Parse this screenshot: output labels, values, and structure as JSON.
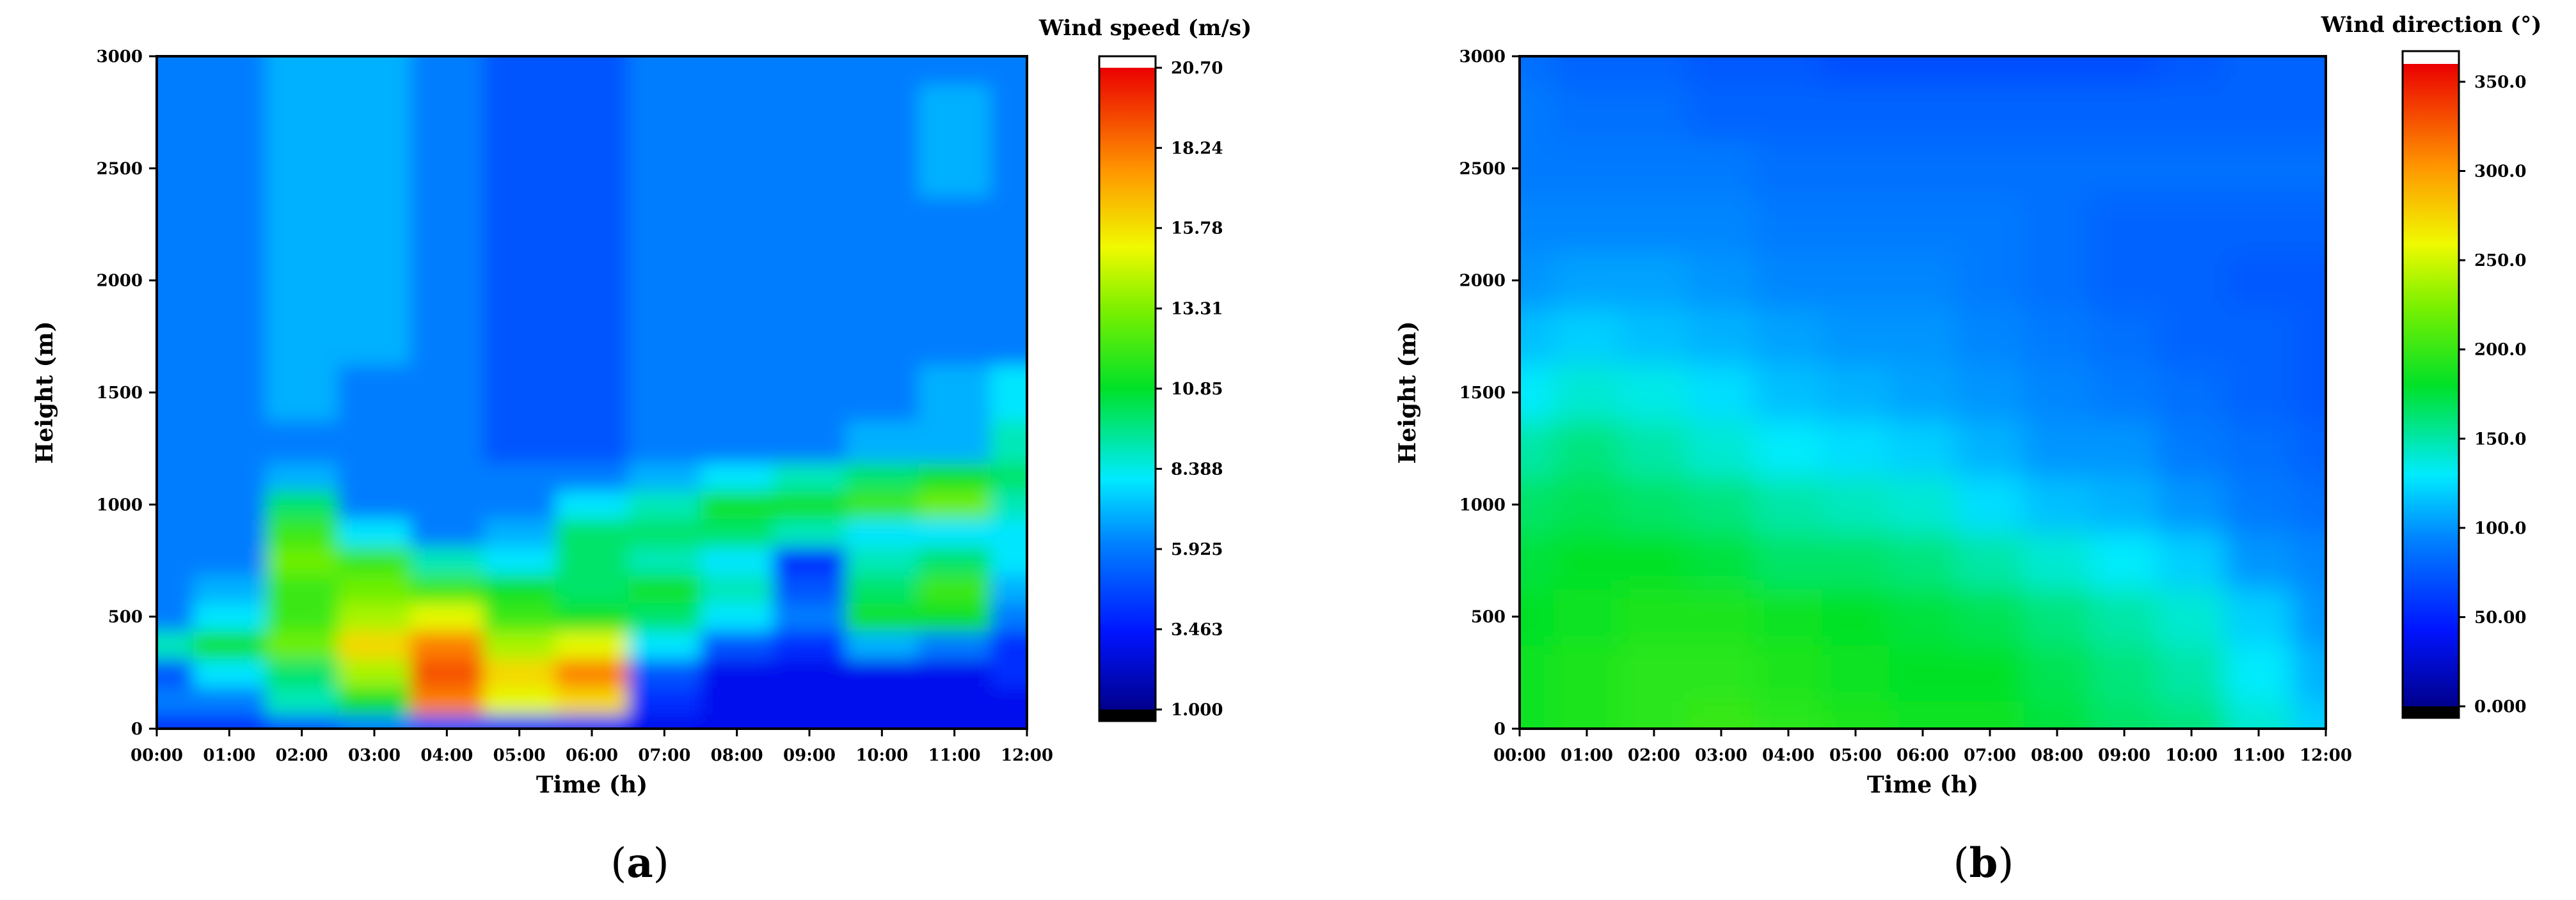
{
  "chart_data": [
    {
      "type": "heatmap",
      "panel_label": [
        "(",
        "a",
        ")"
      ],
      "xlabel": "Time (h)",
      "ylabel": "Height (m)",
      "x_ticks": [
        "00:00",
        "01:00",
        "02:00",
        "03:00",
        "04:00",
        "05:00",
        "06:00",
        "07:00",
        "08:00",
        "09:00",
        "10:00",
        "11:00",
        "12:00"
      ],
      "y_ticks": [
        "0",
        "500",
        "1000",
        "1500",
        "2000",
        "2500",
        "3000"
      ],
      "xlim": [
        0,
        12
      ],
      "ylim": [
        0,
        3000
      ],
      "colorbar": {
        "title": "Wind speed (m/s)",
        "ticks": [
          "20.70",
          "18.24",
          "15.78",
          "13.31",
          "10.85",
          "8.388",
          "5.925",
          "3.463",
          "1.000"
        ],
        "range": [
          1.0,
          20.7
        ]
      },
      "hours": [
        0,
        1,
        2,
        3,
        4,
        5,
        6,
        7,
        8,
        9,
        10,
        11,
        12
      ],
      "heights": [
        0,
        125,
        250,
        375,
        500,
        625,
        750,
        875,
        1000,
        1125,
        1250,
        1500,
        1750,
        2000,
        2250,
        2500,
        2750,
        3000
      ],
      "values": [
        [
          4,
          4,
          5,
          6,
          5,
          4,
          4,
          3,
          3,
          3,
          3,
          3,
          3
        ],
        [
          6,
          6,
          9,
          11,
          18,
          15,
          16,
          4,
          3,
          3,
          3,
          3,
          3
        ],
        [
          5,
          8,
          10,
          14,
          19,
          16,
          18,
          5,
          3,
          3,
          3,
          3,
          4
        ],
        [
          9,
          11,
          13,
          16,
          18,
          14,
          15,
          8,
          5,
          4,
          7,
          6,
          4
        ],
        [
          6,
          8,
          12,
          14,
          15,
          12,
          11,
          10,
          8,
          6,
          11,
          11,
          6
        ],
        [
          6,
          7,
          12,
          13,
          12,
          11,
          10,
          11,
          9,
          5,
          10,
          12,
          7
        ],
        [
          6,
          6,
          13,
          12,
          9,
          8,
          10,
          9,
          8,
          4,
          9,
          10,
          8
        ],
        [
          6,
          6,
          12,
          8,
          6,
          7,
          10,
          10,
          10,
          9,
          8,
          8,
          8
        ],
        [
          6,
          6,
          10,
          6,
          6,
          6,
          8,
          9,
          11,
          11,
          12,
          13,
          9
        ],
        [
          6,
          6,
          7,
          6,
          6,
          6,
          6,
          7,
          8,
          9,
          10,
          11,
          10
        ],
        [
          6,
          6,
          6,
          6,
          6,
          5,
          5,
          6,
          6,
          6,
          7,
          7,
          9
        ],
        [
          6,
          6,
          7,
          6,
          6,
          5,
          5,
          6,
          6,
          6,
          6,
          7,
          8
        ],
        [
          6,
          6,
          7,
          7,
          6,
          5,
          5,
          6,
          6,
          6,
          6,
          6,
          6
        ],
        [
          6,
          6,
          7,
          7,
          6,
          5,
          5,
          6,
          6,
          6,
          6,
          6,
          6
        ],
        [
          6,
          6,
          7,
          7,
          6,
          5,
          5,
          6,
          6,
          6,
          6,
          6,
          6
        ],
        [
          6,
          6,
          7,
          7,
          6,
          5,
          5,
          6,
          6,
          6,
          6,
          7,
          6
        ],
        [
          6,
          6,
          7,
          7,
          6,
          5,
          5,
          6,
          6,
          6,
          6,
          7,
          6
        ],
        [
          6,
          6,
          7,
          7,
          6,
          5,
          5,
          6,
          6,
          6,
          6,
          6,
          6
        ]
      ]
    },
    {
      "type": "heatmap",
      "panel_label": [
        "(",
        "b",
        ")"
      ],
      "xlabel": "Time (h)",
      "ylabel": "Height (m)",
      "x_ticks": [
        "00:00",
        "01:00",
        "02:00",
        "03:00",
        "04:00",
        "05:00",
        "06:00",
        "07:00",
        "08:00",
        "09:00",
        "10:00",
        "11:00",
        "12:00"
      ],
      "y_ticks": [
        "0",
        "500",
        "1000",
        "1500",
        "2000",
        "2500",
        "3000"
      ],
      "xlim": [
        0,
        12
      ],
      "ylim": [
        0,
        3000
      ],
      "colorbar": {
        "title": "Wind direction (°)",
        "ticks": [
          "350.0",
          "300.0",
          "250.0",
          "200.0",
          "150.0",
          "100.0",
          "50.00",
          "0.000"
        ],
        "range": [
          0.0,
          360.0
        ]
      },
      "hours": [
        0,
        1,
        2,
        3,
        4,
        5,
        6,
        7,
        8,
        9,
        10,
        11,
        12
      ],
      "heights": [
        0,
        250,
        500,
        750,
        1000,
        1250,
        1500,
        1750,
        2000,
        2250,
        2500,
        2750,
        3000
      ],
      "values": [
        [
          185,
          190,
          195,
          200,
          195,
          190,
          185,
          185,
          175,
          165,
          160,
          140,
          120
        ],
        [
          185,
          190,
          195,
          195,
          190,
          185,
          180,
          180,
          170,
          160,
          150,
          130,
          110
        ],
        [
          180,
          185,
          190,
          190,
          185,
          180,
          175,
          170,
          160,
          150,
          140,
          120,
          100
        ],
        [
          175,
          180,
          180,
          175,
          165,
          165,
          160,
          150,
          140,
          130,
          120,
          100,
          95
        ],
        [
          165,
          170,
          165,
          160,
          150,
          145,
          140,
          125,
          115,
          110,
          100,
          90,
          85
        ],
        [
          150,
          160,
          150,
          140,
          130,
          125,
          120,
          110,
          100,
          100,
          90,
          85,
          80
        ],
        [
          130,
          140,
          135,
          125,
          115,
          110,
          105,
          100,
          95,
          90,
          85,
          80,
          75
        ],
        [
          115,
          120,
          115,
          110,
          105,
          100,
          100,
          95,
          90,
          85,
          80,
          80,
          75
        ],
        [
          100,
          105,
          105,
          100,
          95,
          95,
          95,
          90,
          85,
          80,
          80,
          75,
          75
        ],
        [
          95,
          95,
          95,
          95,
          90,
          90,
          90,
          90,
          85,
          80,
          80,
          80,
          80
        ],
        [
          90,
          90,
          90,
          90,
          85,
          85,
          85,
          85,
          85,
          85,
          85,
          85,
          85
        ],
        [
          90,
          85,
          85,
          80,
          80,
          80,
          80,
          80,
          80,
          80,
          80,
          80,
          80
        ],
        [
          85,
          80,
          80,
          75,
          75,
          70,
          70,
          70,
          70,
          70,
          75,
          80,
          80
        ]
      ]
    }
  ]
}
